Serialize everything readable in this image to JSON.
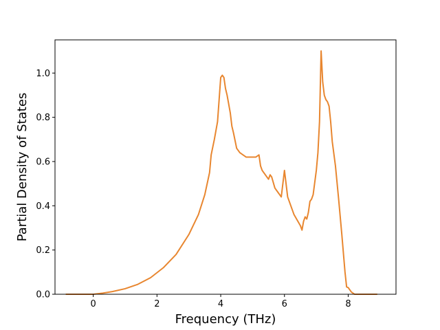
{
  "chart_data": {
    "type": "line",
    "title": "",
    "xlabel": "Frequency (THz)",
    "ylabel": "Partial Density of States",
    "xlim": [
      -1.2,
      9.5
    ],
    "ylim": [
      0.0,
      1.15
    ],
    "xticks": [
      0,
      2,
      4,
      6,
      8
    ],
    "yticks": [
      0.0,
      0.2,
      0.4,
      0.6,
      0.8,
      1.0
    ],
    "xtick_labels": [
      "0",
      "2",
      "4",
      "6",
      "8"
    ],
    "ytick_labels": [
      "0.0",
      "0.2",
      "0.4",
      "0.6",
      "0.8",
      "1.0"
    ],
    "grid": false,
    "legend": "none",
    "series": [
      {
        "color": "#e8862f",
        "x": [
          -0.85,
          -0.5,
          0.0,
          0.3,
          0.6,
          1.0,
          1.4,
          1.8,
          2.2,
          2.6,
          3.0,
          3.3,
          3.5,
          3.65,
          3.7,
          3.8,
          3.9,
          3.95,
          4.0,
          4.05,
          4.1,
          4.15,
          4.2,
          4.25,
          4.3,
          4.35,
          4.4,
          4.5,
          4.6,
          4.8,
          5.0,
          5.1,
          5.2,
          5.25,
          5.3,
          5.5,
          5.55,
          5.6,
          5.7,
          5.8,
          5.9,
          6.0,
          6.1,
          6.3,
          6.5,
          6.55,
          6.6,
          6.65,
          6.7,
          6.75,
          6.8,
          6.85,
          6.9,
          7.0,
          7.05,
          7.1,
          7.15,
          7.2,
          7.25,
          7.3,
          7.35,
          7.4,
          7.45,
          7.5,
          7.6,
          7.7,
          7.8,
          7.9,
          7.95,
          8.0,
          8.1,
          8.2,
          8.5,
          8.9
        ],
        "y": [
          0.0,
          0.0,
          0.0,
          0.005,
          0.012,
          0.025,
          0.045,
          0.075,
          0.12,
          0.18,
          0.27,
          0.36,
          0.45,
          0.55,
          0.63,
          0.7,
          0.78,
          0.88,
          0.98,
          0.99,
          0.98,
          0.93,
          0.9,
          0.86,
          0.82,
          0.76,
          0.73,
          0.66,
          0.64,
          0.62,
          0.62,
          0.62,
          0.63,
          0.58,
          0.56,
          0.52,
          0.54,
          0.53,
          0.48,
          0.46,
          0.44,
          0.56,
          0.44,
          0.36,
          0.31,
          0.29,
          0.33,
          0.35,
          0.34,
          0.37,
          0.42,
          0.43,
          0.45,
          0.56,
          0.64,
          0.78,
          1.1,
          0.96,
          0.9,
          0.88,
          0.87,
          0.85,
          0.78,
          0.69,
          0.58,
          0.43,
          0.27,
          0.1,
          0.033,
          0.03,
          0.01,
          0.0,
          0.0,
          0.0
        ]
      }
    ]
  }
}
